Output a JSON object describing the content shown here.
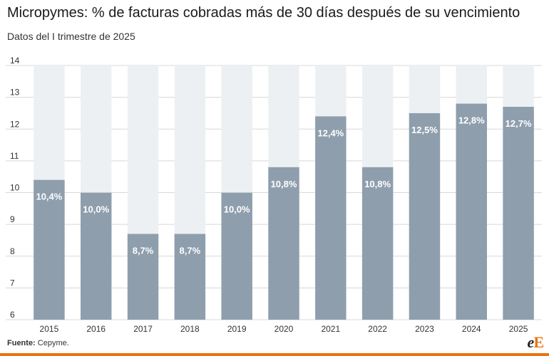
{
  "title": "Micropymes: % de facturas cobradas más de 30 días después de su vencimiento",
  "subtitle": "Datos del I trimestre de 2025",
  "source": {
    "label": "Fuente:",
    "text": "Cepyme."
  },
  "logo": {
    "first": "e",
    "second": "E"
  },
  "colors": {
    "bar": "#8e9ead",
    "track": "#edf0f3",
    "gridline": "#d8d8d8",
    "label": "#ffffff",
    "tick_text": "#333333",
    "accent": "#e87511"
  },
  "chart_data": {
    "type": "bar",
    "categories": [
      "2015",
      "2016",
      "2017",
      "2018",
      "2019",
      "2020",
      "2021",
      "2022",
      "2023",
      "2024",
      "2025"
    ],
    "values": [
      10.4,
      10.0,
      8.7,
      8.7,
      10.0,
      10.8,
      12.4,
      10.8,
      12.5,
      12.8,
      12.7
    ],
    "data_labels": [
      "10,4%",
      "10,0%",
      "8,7%",
      "8,7%",
      "10,0%",
      "10,8%",
      "12,4%",
      "10,8%",
      "12,5%",
      "12,8%",
      "12,7%"
    ],
    "ylim": [
      6,
      14
    ],
    "yticks": [
      6,
      7,
      8,
      9,
      10,
      11,
      12,
      13,
      14
    ],
    "xlabel": "",
    "ylabel": "",
    "grid": true,
    "background_track_to": 14
  }
}
